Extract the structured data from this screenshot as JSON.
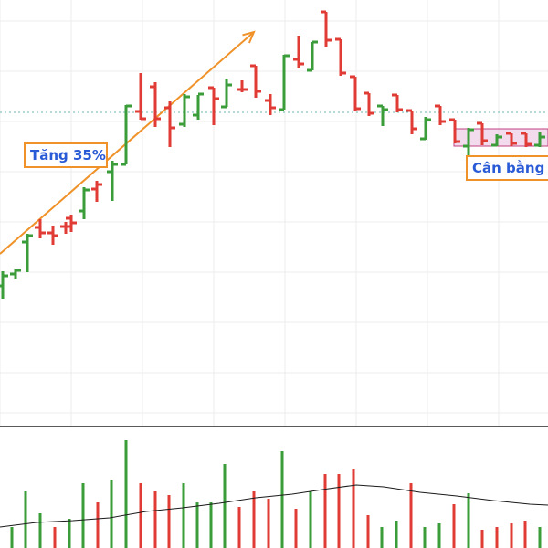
{
  "colors": {
    "up": "#3a9d3a",
    "down": "#e03b35",
    "trend_arrow": "#f0922a",
    "annotation_border": "#f0922a",
    "annotation_text": "#2a5bd7",
    "range_fill": "#e8c3e0",
    "range_border": "#c04080",
    "ref_line": "#6cb6b0",
    "volume_ma": "#1a1a1a",
    "grid": "#ececec",
    "divider": "#222222"
  },
  "chart_data": [
    {
      "type": "ohlc",
      "panel": "price",
      "grid": true,
      "legend": "none",
      "y_reference_line": 123,
      "annotations": [
        {
          "text": "Tăng 35%",
          "kind": "trend-arrow-label",
          "from": [
            0,
            278
          ],
          "to": [
            278,
            35
          ],
          "anchor": [
            72,
            170
          ]
        },
        {
          "text": "Cân bằng s",
          "kind": "range-label",
          "anchor": [
            560,
            185
          ]
        }
      ],
      "range_box": {
        "x_from": 497,
        "x_to": 600,
        "y_top": 141,
        "y_bottom": 160
      },
      "bars": [
        {
          "x": 3,
          "o": 313,
          "h": 297,
          "l": 327,
          "c": 302,
          "dir": "up"
        },
        {
          "x": 17,
          "o": 300,
          "h": 294,
          "l": 306,
          "c": 296,
          "dir": "up"
        },
        {
          "x": 30,
          "o": 265,
          "h": 256,
          "l": 298,
          "c": 258,
          "dir": "up"
        },
        {
          "x": 44,
          "o": 249,
          "h": 240,
          "l": 261,
          "c": 255,
          "dir": "down"
        },
        {
          "x": 58,
          "o": 255,
          "h": 247,
          "l": 268,
          "c": 258,
          "dir": "down"
        },
        {
          "x": 72,
          "o": 248,
          "h": 243,
          "l": 256,
          "c": 248,
          "dir": "down"
        },
        {
          "x": 78,
          "o": 239,
          "h": 235,
          "l": 254,
          "c": 244,
          "dir": "down"
        },
        {
          "x": 92,
          "o": 231,
          "h": 205,
          "l": 240,
          "c": 208,
          "dir": "up"
        },
        {
          "x": 106,
          "o": 207,
          "h": 198,
          "l": 221,
          "c": 202,
          "dir": "down"
        },
        {
          "x": 123,
          "o": 188,
          "h": 176,
          "l": 220,
          "c": 180,
          "dir": "up"
        },
        {
          "x": 138,
          "o": 180,
          "h": 115,
          "l": 180,
          "c": 116,
          "dir": "up"
        },
        {
          "x": 154,
          "o": 122,
          "h": 80,
          "l": 131,
          "c": 130,
          "dir": "down"
        },
        {
          "x": 170,
          "o": 95,
          "h": 90,
          "l": 139,
          "c": 130,
          "dir": "down"
        },
        {
          "x": 186,
          "o": 118,
          "h": 111,
          "l": 161,
          "c": 140,
          "dir": "down"
        },
        {
          "x": 202,
          "o": 136,
          "h": 103,
          "l": 139,
          "c": 106,
          "dir": "up"
        },
        {
          "x": 217,
          "o": 126,
          "h": 104,
          "l": 131,
          "c": 103,
          "dir": "up"
        },
        {
          "x": 234,
          "o": 96,
          "h": 96,
          "l": 137,
          "c": 108,
          "dir": "down"
        },
        {
          "x": 248,
          "o": 117,
          "h": 86,
          "l": 117,
          "c": 93,
          "dir": "up"
        },
        {
          "x": 265,
          "o": 98,
          "h": 88,
          "l": 101,
          "c": 98,
          "dir": "down"
        },
        {
          "x": 280,
          "o": 72,
          "h": 72,
          "l": 107,
          "c": 100,
          "dir": "down"
        },
        {
          "x": 296,
          "o": 110,
          "h": 103,
          "l": 126,
          "c": 118,
          "dir": "down"
        },
        {
          "x": 311,
          "o": 120,
          "h": 60,
          "l": 120,
          "c": 61,
          "dir": "up"
        },
        {
          "x": 327,
          "o": 65,
          "h": 39,
          "l": 75,
          "c": 70,
          "dir": "down"
        },
        {
          "x": 342,
          "o": 77,
          "h": 46,
          "l": 77,
          "c": 46,
          "dir": "up"
        },
        {
          "x": 357,
          "o": 13,
          "h": 13,
          "l": 52,
          "c": 44,
          "dir": "down"
        },
        {
          "x": 373,
          "o": 43,
          "h": 43,
          "l": 83,
          "c": 80,
          "dir": "down"
        },
        {
          "x": 389,
          "o": 84,
          "h": 84,
          "l": 121,
          "c": 119,
          "dir": "down"
        },
        {
          "x": 404,
          "o": 102,
          "h": 102,
          "l": 127,
          "c": 124,
          "dir": "down"
        },
        {
          "x": 419,
          "o": 116,
          "h": 116,
          "l": 138,
          "c": 120,
          "dir": "up"
        },
        {
          "x": 435,
          "o": 104,
          "h": 104,
          "l": 123,
          "c": 120,
          "dir": "down"
        },
        {
          "x": 451,
          "o": 121,
          "h": 121,
          "l": 147,
          "c": 141,
          "dir": "down"
        },
        {
          "x": 466,
          "o": 152,
          "h": 128,
          "l": 153,
          "c": 131,
          "dir": "up"
        },
        {
          "x": 482,
          "o": 116,
          "h": 116,
          "l": 137,
          "c": 133,
          "dir": "down"
        },
        {
          "x": 498,
          "o": 131,
          "h": 131,
          "l": 157,
          "c": 155,
          "dir": "down"
        },
        {
          "x": 513,
          "o": 160,
          "h": 140,
          "l": 190,
          "c": 142,
          "dir": "up"
        },
        {
          "x": 528,
          "o": 135,
          "h": 135,
          "l": 159,
          "c": 154,
          "dir": "down"
        },
        {
          "x": 544,
          "o": 159,
          "h": 147,
          "l": 160,
          "c": 150,
          "dir": "up"
        },
        {
          "x": 560,
          "o": 146,
          "h": 146,
          "l": 160,
          "c": 157,
          "dir": "down"
        },
        {
          "x": 576,
          "o": 146,
          "h": 146,
          "l": 161,
          "c": 158,
          "dir": "down"
        },
        {
          "x": 591,
          "o": 159,
          "h": 144,
          "l": 161,
          "c": 150,
          "dir": "up"
        }
      ]
    },
    {
      "type": "bar",
      "panel": "volume",
      "series": [
        {
          "name": "",
          "values": [
            {
              "x": 13,
              "top": 577,
              "dir": "up"
            },
            {
              "x": 28,
              "top": 538,
              "dir": "up"
            },
            {
              "x": 44,
              "top": 562,
              "dir": "up"
            },
            {
              "x": 60,
              "top": 577,
              "dir": "down"
            },
            {
              "x": 76,
              "top": 568,
              "dir": "up"
            },
            {
              "x": 91,
              "top": 529,
              "dir": "up"
            },
            {
              "x": 107,
              "top": 550,
              "dir": "down"
            },
            {
              "x": 122,
              "top": 526,
              "dir": "up"
            },
            {
              "x": 138,
              "top": 482,
              "dir": "up"
            },
            {
              "x": 154,
              "top": 529,
              "dir": "down"
            },
            {
              "x": 170,
              "top": 538,
              "dir": "down"
            },
            {
              "x": 185,
              "top": 542,
              "dir": "down"
            },
            {
              "x": 201,
              "top": 529,
              "dir": "up"
            },
            {
              "x": 216,
              "top": 550,
              "dir": "up"
            },
            {
              "x": 231,
              "top": 550,
              "dir": "up"
            },
            {
              "x": 246,
              "top": 508,
              "dir": "up"
            },
            {
              "x": 262,
              "top": 555,
              "dir": "down"
            },
            {
              "x": 278,
              "top": 538,
              "dir": "down"
            },
            {
              "x": 294,
              "top": 546,
              "dir": "down"
            },
            {
              "x": 309,
              "top": 494,
              "dir": "up"
            },
            {
              "x": 324,
              "top": 557,
              "dir": "down"
            },
            {
              "x": 340,
              "top": 538,
              "dir": "up"
            },
            {
              "x": 356,
              "top": 519,
              "dir": "down"
            },
            {
              "x": 371,
              "top": 519,
              "dir": "down"
            },
            {
              "x": 387,
              "top": 513,
              "dir": "down"
            },
            {
              "x": 403,
              "top": 564,
              "dir": "down"
            },
            {
              "x": 418,
              "top": 577,
              "dir": "up"
            },
            {
              "x": 434,
              "top": 570,
              "dir": "up"
            },
            {
              "x": 450,
              "top": 529,
              "dir": "down"
            },
            {
              "x": 465,
              "top": 577,
              "dir": "up"
            },
            {
              "x": 481,
              "top": 573,
              "dir": "up"
            },
            {
              "x": 497,
              "top": 552,
              "dir": "down"
            },
            {
              "x": 513,
              "top": 540,
              "dir": "up"
            },
            {
              "x": 528,
              "top": 580,
              "dir": "down"
            },
            {
              "x": 544,
              "top": 577,
              "dir": "down"
            },
            {
              "x": 560,
              "top": 573,
              "dir": "down"
            },
            {
              "x": 575,
              "top": 570,
              "dir": "down"
            },
            {
              "x": 591,
              "top": 577,
              "dir": "up"
            }
          ]
        }
      ],
      "moving_average": [
        [
          0,
          577
        ],
        [
          40,
          572
        ],
        [
          80,
          570
        ],
        [
          120,
          567
        ],
        [
          160,
          560
        ],
        [
          200,
          556
        ],
        [
          240,
          551
        ],
        [
          280,
          545
        ],
        [
          320,
          541
        ],
        [
          360,
          535
        ],
        [
          390,
          531
        ],
        [
          420,
          533
        ],
        [
          460,
          539
        ],
        [
          500,
          543
        ],
        [
          540,
          548
        ],
        [
          580,
          552
        ],
        [
          600,
          553
        ]
      ]
    }
  ]
}
